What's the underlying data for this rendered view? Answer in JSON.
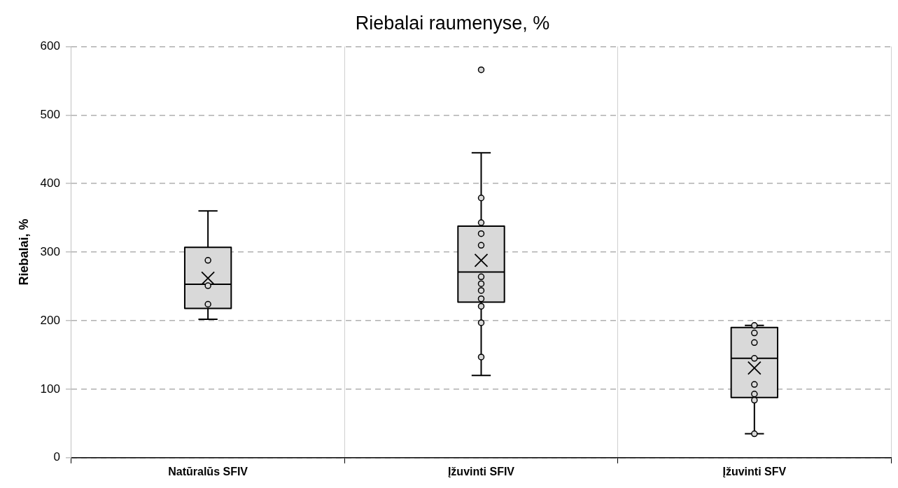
{
  "chart_data": {
    "type": "box",
    "title": "Riebalai raumenyse, %",
    "ylabel": "Riebalai, %",
    "categories": [
      "Natūralūs SFIV",
      "Įžuvinti SFIV",
      "Įžuvinti SFV"
    ],
    "color": "#d9d9d9",
    "boxes": [
      {
        "low": 202,
        "q1": 218,
        "median": 253,
        "q3": 307,
        "high": 360,
        "mean": 262
      },
      {
        "low": 120,
        "q1": 227,
        "median": 271,
        "q3": 338,
        "high": 445,
        "mean": 288,
        "outliers": [
          566
        ]
      },
      {
        "low": 35,
        "q1": 88,
        "median": 145,
        "q3": 190,
        "high": 193,
        "mean": 131
      }
    ],
    "series": [
      {
        "type": "scatter",
        "color": "#d9d9d9",
        "x": [
          "Natūralūs SFIV",
          "Natūralūs SFIV",
          "Natūralūs SFIV",
          "Įžuvinti SFIV",
          "Įžuvinti SFIV",
          "Įžuvinti SFIV",
          "Įžuvinti SFIV",
          "Įžuvinti SFIV",
          "Įžuvinti SFIV",
          "Įžuvinti SFIV",
          "Įžuvinti SFIV",
          "Įžuvinti SFIV",
          "Įžuvinti SFIV",
          "Įžuvinti SFIV",
          "Įžuvinti SFV",
          "Įžuvinti SFV",
          "Įžuvinti SFV",
          "Įžuvinti SFV",
          "Įžuvinti SFV",
          "Įžuvinti SFV",
          "Įžuvinti SFV",
          "Įžuvinti SFV"
        ],
        "values": [
          288,
          251,
          224,
          379,
          343,
          327,
          310,
          264,
          254,
          244,
          232,
          221,
          197,
          147,
          193,
          182,
          168,
          145,
          107,
          93,
          84,
          35
        ]
      }
    ],
    "marker": "circle",
    "ylim": [
      0,
      600
    ],
    "yticks": [
      0,
      100,
      200,
      300,
      400,
      500,
      600
    ],
    "grid": true,
    "legend": false
  }
}
